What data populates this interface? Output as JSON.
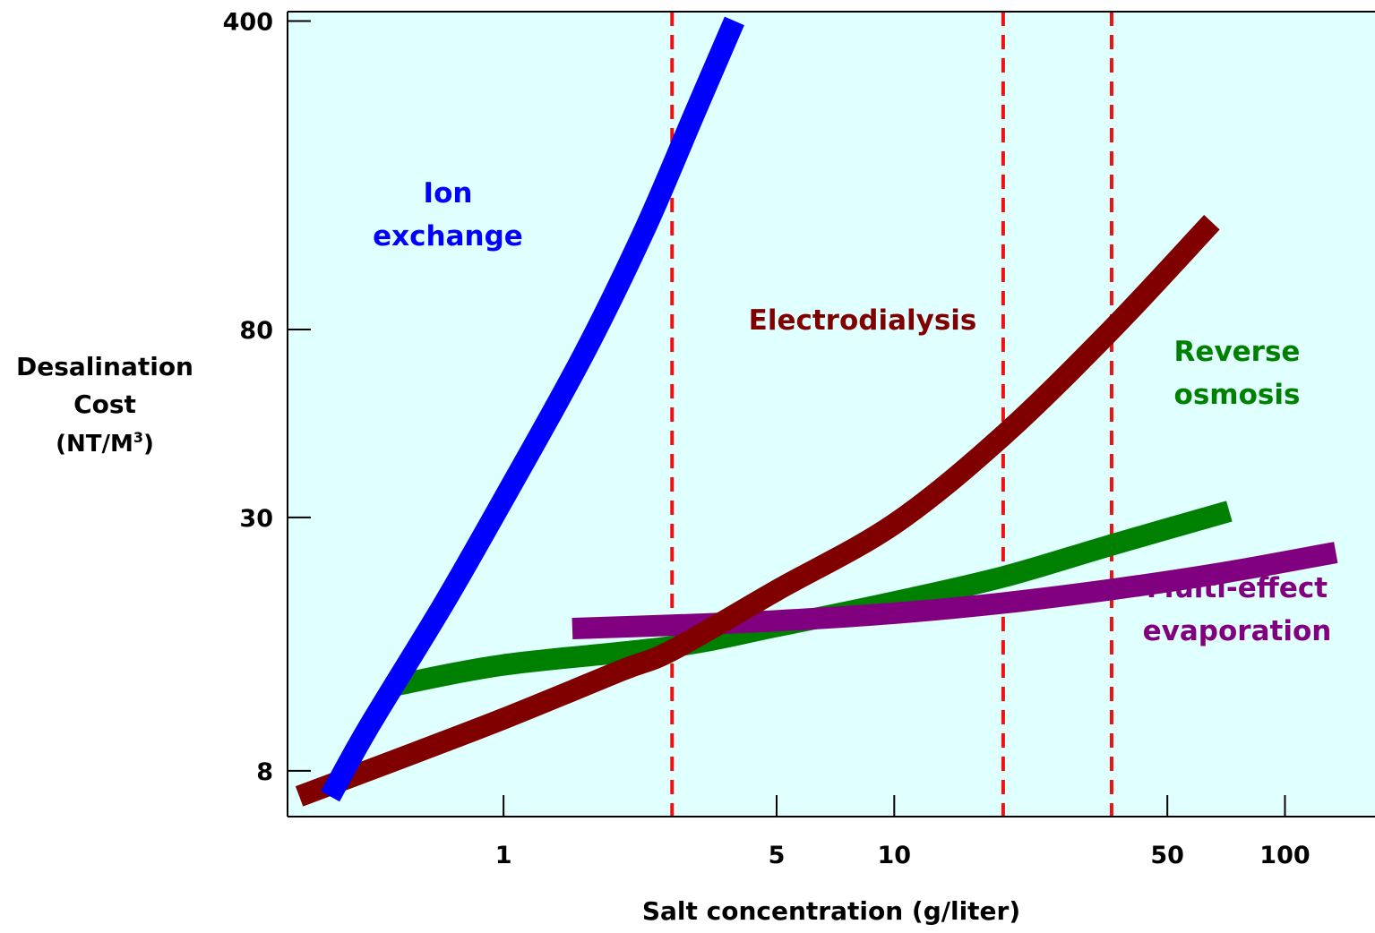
{
  "chart_data": {
    "type": "line",
    "title": "",
    "xlabel": "Salt concentration (g/liter)",
    "ylabel": {
      "line1": "Desalination",
      "line2": "Cost",
      "line3": "(NT/M",
      "sup": "3",
      "close": ")"
    },
    "xscale": "log",
    "yscale": "log",
    "xlim": [
      0.28,
      170
    ],
    "ylim": [
      6.3,
      420
    ],
    "xticks": [
      {
        "value": 1,
        "label": "1"
      },
      {
        "value": 5,
        "label": "5"
      },
      {
        "value": 10,
        "label": "10"
      },
      {
        "value": 50,
        "label": "50"
      },
      {
        "value": 100,
        "label": "100"
      }
    ],
    "yticks": [
      {
        "value": 8,
        "label": "8"
      },
      {
        "value": 30,
        "label": "30"
      },
      {
        "value": 80,
        "label": "80"
      },
      {
        "value": 400,
        "label": "400"
      }
    ],
    "grid": false,
    "background": "#e0ffff",
    "reference_lines": {
      "color": "#ee1111",
      "style": "dashed",
      "x": [
        2.7,
        19,
        36
      ]
    },
    "series": [
      {
        "name": "Ion exchange",
        "label_lines": [
          "Ion",
          "exchange"
        ],
        "color": "#0000ff",
        "points": [
          [
            0.36,
            7
          ],
          [
            0.45,
            10
          ],
          [
            0.7,
            19
          ],
          [
            1,
            33
          ],
          [
            1.6,
            70
          ],
          [
            2.3,
            135
          ],
          [
            3.1,
            250
          ],
          [
            3.9,
            400
          ]
        ]
      },
      {
        "name": "Electrodialysis",
        "label_lines": [
          "Electrodialysis"
        ],
        "color": "#800000",
        "points": [
          [
            0.3,
            7
          ],
          [
            0.5,
            8.3
          ],
          [
            1,
            10.5
          ],
          [
            2,
            13.5
          ],
          [
            2.7,
            15
          ],
          [
            5,
            20.5
          ],
          [
            10,
            29
          ],
          [
            19,
            46
          ],
          [
            36,
            80
          ],
          [
            65,
            140
          ]
        ]
      },
      {
        "name": "Reverse osmosis",
        "label_lines": [
          "Reverse",
          "osmosis"
        ],
        "color": "#008000",
        "points": [
          [
            0.53,
            12.5
          ],
          [
            1,
            13.9
          ],
          [
            2.7,
            15.3
          ],
          [
            5,
            17
          ],
          [
            10,
            19.3
          ],
          [
            19,
            22
          ],
          [
            36,
            26
          ],
          [
            72,
            31
          ]
        ]
      },
      {
        "name": "Multi-effect evaporation",
        "label_lines": [
          "Multi-effect",
          "evaporation"
        ],
        "color": "#800080",
        "points": [
          [
            1.5,
            16.8
          ],
          [
            2.7,
            17.1
          ],
          [
            5,
            17.5
          ],
          [
            10,
            18.2
          ],
          [
            19,
            19.2
          ],
          [
            36,
            20.6
          ],
          [
            70,
            22.5
          ],
          [
            135,
            25
          ]
        ]
      }
    ]
  }
}
